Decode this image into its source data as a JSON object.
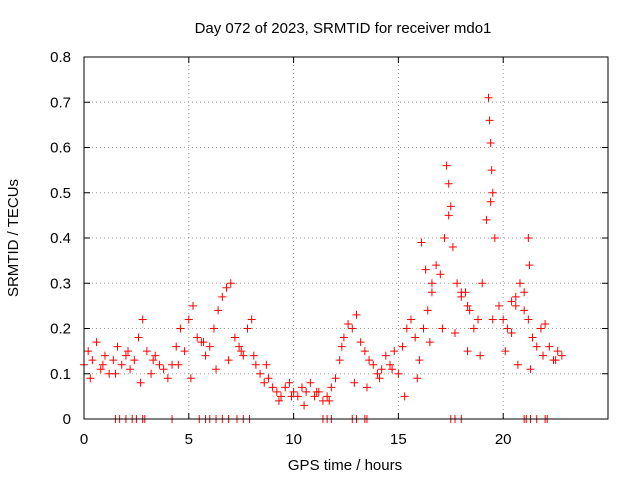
{
  "chart_data": {
    "type": "scatter",
    "title": "Day 072 of 2023, SRMTID for receiver mdo1",
    "xlabel": "GPS time / hours",
    "ylabel": "SRMTID / TECUs",
    "xlim": [
      0,
      25
    ],
    "ylim": [
      0,
      0.8
    ],
    "x_ticks": [
      "0",
      "5",
      "10",
      "15",
      "20"
    ],
    "y_ticks": [
      "0",
      "0.1",
      "0.2",
      "0.3",
      "0.4",
      "0.5",
      "0.6",
      "0.7",
      "0.8"
    ],
    "grid": true,
    "marker": "plus",
    "colors": {
      "series": "#ff0000",
      "grid": "#a0a0a0",
      "axis": "#000000"
    },
    "series": [
      {
        "name": "SRMTID",
        "x": [
          0.0,
          0.2,
          0.4,
          0.6,
          0.8,
          1.0,
          1.2,
          1.4,
          1.6,
          1.8,
          2.0,
          2.2,
          2.4,
          2.6,
          2.8,
          3.0,
          3.2,
          3.4,
          3.6,
          3.8,
          4.0,
          4.2,
          4.4,
          4.6,
          4.8,
          5.0,
          5.2,
          5.4,
          5.6,
          5.8,
          6.0,
          6.2,
          6.4,
          6.6,
          6.8,
          7.0,
          7.2,
          7.4,
          7.6,
          7.8,
          8.0,
          8.2,
          8.4,
          8.6,
          8.8,
          9.0,
          9.2,
          9.4,
          9.6,
          9.8,
          10.0,
          10.2,
          10.4,
          10.6,
          10.8,
          11.0,
          11.2,
          11.4,
          11.6,
          11.8,
          12.0,
          12.2,
          12.4,
          12.6,
          12.8,
          13.0,
          13.2,
          13.4,
          13.6,
          13.8,
          14.0,
          14.2,
          14.4,
          14.6,
          14.8,
          15.0,
          15.2,
          15.4,
          15.6,
          15.8,
          16.0,
          16.2,
          16.4,
          16.6,
          16.8,
          17.0,
          17.2,
          17.4,
          17.6,
          17.8,
          18.0,
          18.2,
          18.4,
          18.6,
          18.8,
          19.0,
          19.2,
          19.4,
          19.6,
          19.8,
          20.0,
          20.2,
          20.4,
          20.6,
          20.8,
          21.0,
          21.2,
          21.4,
          21.6,
          21.8,
          22.0,
          22.2,
          22.4,
          22.6,
          22.8,
          0.3,
          0.9,
          1.5,
          2.1,
          2.7,
          3.3,
          4.5,
          5.1,
          5.7,
          6.3,
          6.9,
          7.5,
          8.1,
          8.7,
          9.3,
          9.9,
          10.5,
          11.1,
          11.7,
          12.3,
          12.9,
          13.5,
          14.1,
          14.7,
          15.3,
          15.9,
          16.5,
          17.1,
          17.7,
          18.3,
          18.9,
          19.5,
          20.1,
          20.7,
          21.3,
          21.9,
          22.5,
          17.3,
          17.4,
          17.5,
          19.3,
          19.35,
          19.4,
          19.45,
          19.5,
          21.2,
          21.25,
          16.1,
          16.3,
          16.6,
          18.0,
          18.3,
          20.4,
          20.6,
          21.0,
          1.5,
          1.7,
          2.0,
          2.3,
          2.5,
          2.8,
          2.9,
          4.2,
          5.5,
          5.8,
          6.0,
          6.3,
          6.6,
          6.9,
          7.3,
          7.6,
          7.9,
          11.4,
          11.6,
          11.8,
          12.8,
          13.0,
          13.4,
          13.5,
          17.5,
          17.7,
          18.0,
          21.0,
          21.1,
          21.3,
          21.6,
          22.0,
          22.1
        ],
        "y": [
          0.12,
          0.15,
          0.13,
          0.17,
          0.11,
          0.14,
          0.1,
          0.13,
          0.16,
          0.12,
          0.14,
          0.11,
          0.13,
          0.18,
          0.22,
          0.15,
          0.1,
          0.14,
          0.12,
          0.11,
          0.09,
          0.12,
          0.16,
          0.2,
          0.15,
          0.22,
          0.25,
          0.18,
          0.17,
          0.14,
          0.16,
          0.2,
          0.24,
          0.27,
          0.29,
          0.3,
          0.18,
          0.16,
          0.14,
          0.2,
          0.22,
          0.12,
          0.1,
          0.08,
          0.09,
          0.07,
          0.06,
          0.05,
          0.07,
          0.08,
          0.06,
          0.05,
          0.07,
          0.06,
          0.08,
          0.05,
          0.06,
          0.04,
          0.05,
          0.07,
          0.09,
          0.13,
          0.18,
          0.21,
          0.2,
          0.23,
          0.17,
          0.15,
          0.13,
          0.12,
          0.1,
          0.11,
          0.14,
          0.12,
          0.15,
          0.1,
          0.16,
          0.2,
          0.22,
          0.18,
          0.13,
          0.2,
          0.24,
          0.28,
          0.34,
          0.32,
          0.4,
          0.45,
          0.38,
          0.3,
          0.27,
          0.28,
          0.24,
          0.2,
          0.22,
          0.3,
          0.44,
          0.48,
          0.4,
          0.25,
          0.22,
          0.2,
          0.19,
          0.25,
          0.3,
          0.28,
          0.22,
          0.18,
          0.16,
          0.2,
          0.21,
          0.16,
          0.13,
          0.15,
          0.14,
          0.09,
          0.12,
          0.1,
          0.15,
          0.08,
          0.13,
          0.12,
          0.09,
          0.17,
          0.11,
          0.13,
          0.15,
          0.14,
          0.12,
          0.04,
          0.05,
          0.03,
          0.06,
          0.04,
          0.16,
          0.08,
          0.07,
          0.09,
          0.11,
          0.05,
          0.09,
          0.17,
          0.2,
          0.19,
          0.15,
          0.14,
          0.22,
          0.15,
          0.12,
          0.11,
          0.14,
          0.13,
          0.56,
          0.52,
          0.47,
          0.71,
          0.66,
          0.61,
          0.55,
          0.5,
          0.4,
          0.34,
          0.39,
          0.33,
          0.3,
          0.28,
          0.25,
          0.26,
          0.27,
          0.24,
          0.0,
          0.0,
          0.0,
          0.0,
          0.0,
          0.0,
          0.0,
          0.0,
          0.0,
          0.0,
          0.0,
          0.0,
          0.0,
          0.0,
          0.0,
          0.0,
          0.0,
          0.0,
          0.0,
          0.0,
          0.0,
          0.0,
          0.0,
          0.0,
          0.0,
          0.0,
          0.0,
          0.0,
          0.0,
          0.0,
          0.0,
          0.0,
          0.0
        ]
      }
    ]
  }
}
